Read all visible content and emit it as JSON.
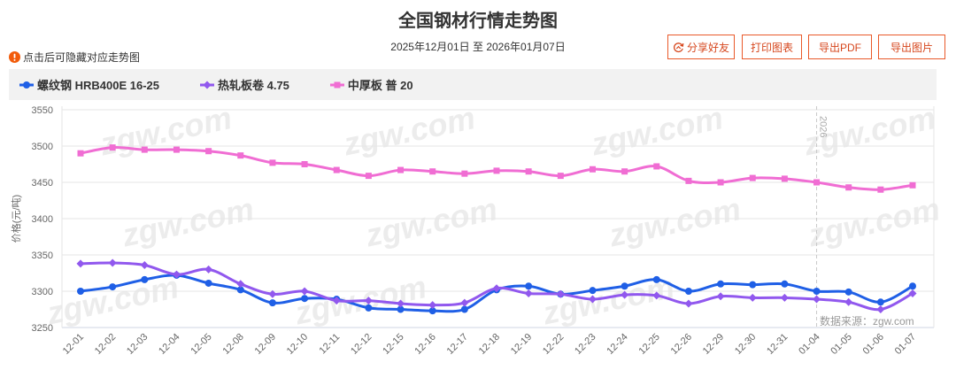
{
  "hint": {
    "icon": "exclamation-icon",
    "text": "点击后可隐藏对应走势图"
  },
  "toolbar": {
    "share": {
      "icon": "share-icon",
      "label": "分享好友"
    },
    "print_label": "打印图表",
    "pdf_label": "导出PDF",
    "image_label": "导出图片"
  },
  "colors": {
    "accent": "#e9592a",
    "legend_bg": "#f2f2f2",
    "grid": "#e6e6e6"
  },
  "watermark": "zgw.com",
  "source": "数据来源：zgw.com",
  "chart_data": {
    "type": "line",
    "title": "全国钢材行情走势图",
    "subtitle": "2025年12月01日 至 2026年01月07日",
    "ylabel": "价格(元/吨)",
    "ylim": [
      3250,
      3550
    ],
    "yticks": [
      3250,
      3300,
      3350,
      3400,
      3450,
      3500,
      3550
    ],
    "grid": true,
    "legend": "top-left",
    "categories": [
      "12-01",
      "12-02",
      "12-03",
      "12-04",
      "12-05",
      "12-08",
      "12-09",
      "12-10",
      "12-11",
      "12-12",
      "12-15",
      "12-16",
      "12-17",
      "12-18",
      "12-19",
      "12-22",
      "12-23",
      "12-24",
      "12-25",
      "12-26",
      "12-29",
      "12-30",
      "12-31",
      "01-04",
      "01-05",
      "01-06",
      "01-07"
    ],
    "annotations": [
      {
        "x": "01-04",
        "label": "2026"
      }
    ],
    "series": [
      {
        "name": "螺纹钢 HRB400E 16-25",
        "color": "#1f5fe6",
        "values": [
          3300,
          3306,
          3316,
          3322,
          3311,
          3302,
          3284,
          3290,
          3289,
          3277,
          3275,
          3273,
          3275,
          3302,
          3307,
          3296,
          3301,
          3307,
          3316,
          3300,
          3310,
          3309,
          3310,
          3300,
          3299,
          3285,
          3307
        ]
      },
      {
        "name": "热轧板卷 4.75",
        "color": "#9158ee",
        "values": [
          3338,
          3339,
          3336,
          3323,
          3330,
          3310,
          3296,
          3300,
          3287,
          3287,
          3283,
          3281,
          3284,
          3304,
          3297,
          3296,
          3289,
          3295,
          3294,
          3283,
          3293,
          3291,
          3291,
          3289,
          3285,
          3275,
          3297
        ]
      },
      {
        "name": "中厚板 普 20",
        "color": "#f06dd3",
        "values": [
          3490,
          3498,
          3495,
          3495,
          3493,
          3487,
          3477,
          3475,
          3467,
          3459,
          3467,
          3465,
          3462,
          3466,
          3465,
          3459,
          3468,
          3465,
          3472,
          3452,
          3450,
          3456,
          3455,
          3450,
          3443,
          3440,
          3446
        ]
      }
    ]
  }
}
